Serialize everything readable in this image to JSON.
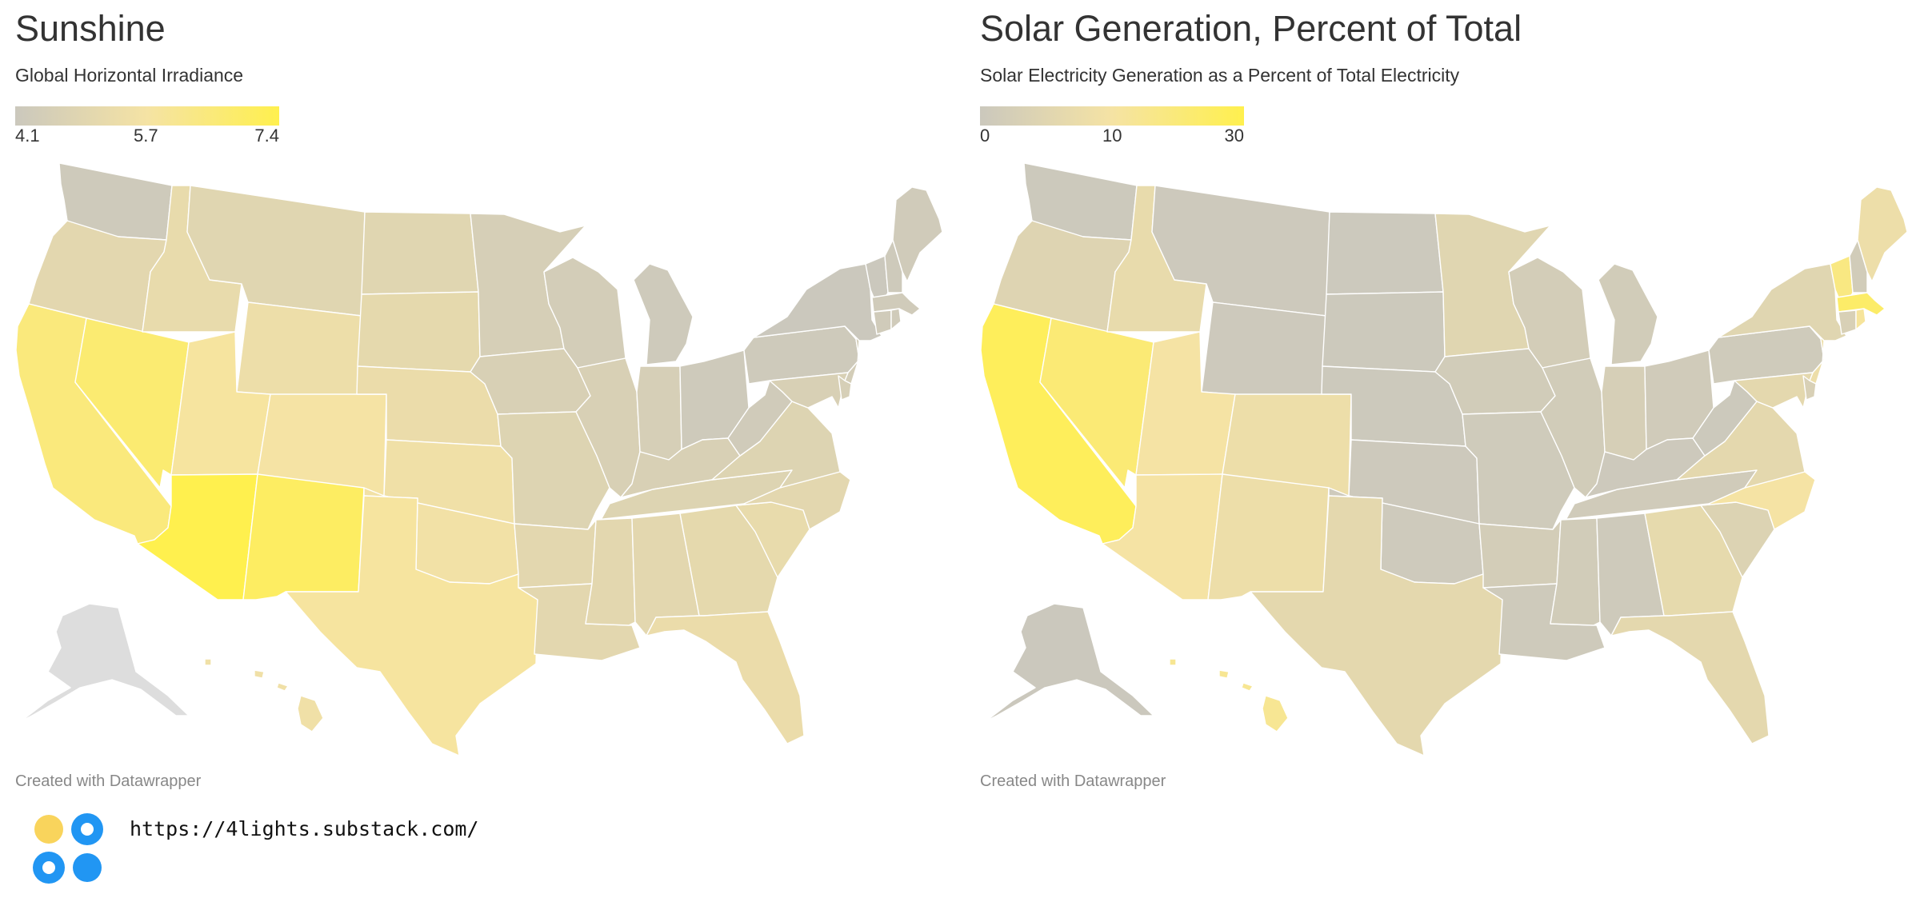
{
  "credit": "Created with Datawrapper",
  "link": "https://4lights.substack.com/",
  "colors": {
    "low": "#cbc8bd",
    "mid": "#f5e3a4",
    "high": "#fff04e",
    "no_data": "#dddddd",
    "logo_yellow": "#f9d45c",
    "logo_blue": "#2196f3"
  },
  "maps": [
    {
      "title": "Sunshine",
      "subtitle": "Global Horizontal Irradiance",
      "legend": {
        "min": "4.1",
        "mid": "5.7",
        "max": "7.4"
      },
      "scale": [
        4.1,
        5.7,
        7.4
      ],
      "credit": "Created with Datawrapper",
      "states": {
        "WA": 4.2,
        "OR": 5.0,
        "CA": 6.5,
        "NV": 6.7,
        "ID": 5.2,
        "MT": 4.9,
        "WY": 5.4,
        "UT": 5.8,
        "AZ": 7.4,
        "CO": 5.7,
        "NM": 7.0,
        "ND": 4.9,
        "SD": 5.1,
        "NE": 5.3,
        "KS": 5.5,
        "OK": 5.6,
        "TX": 5.8,
        "MN": 4.5,
        "IA": 4.6,
        "MO": 4.8,
        "AR": 5.0,
        "LA": 5.0,
        "WI": 4.4,
        "IL": 4.6,
        "MI": 4.2,
        "IN": 4.5,
        "OH": 4.2,
        "KY": 4.6,
        "TN": 4.8,
        "MS": 5.0,
        "AL": 5.0,
        "GA": 5.1,
        "FL": 5.3,
        "SC": 5.2,
        "NC": 5.0,
        "VA": 4.8,
        "WV": 4.3,
        "PA": 4.2,
        "NY": 4.1,
        "VT": 4.1,
        "NH": 4.2,
        "ME": 4.3,
        "MA": 4.3,
        "CT": 4.3,
        "RI": 4.3,
        "NJ": 4.4,
        "DE": 4.5,
        "MD": 4.6,
        "AK": null,
        "HI": 5.5
      }
    },
    {
      "title": "Solar Generation, Percent of Total",
      "subtitle": "Solar Electricity Generation as a Percent of Total Electricity",
      "legend": {
        "min": "0",
        "mid": "10",
        "max": "30"
      },
      "scale": [
        0,
        10,
        30
      ],
      "credit": "Created with Datawrapper",
      "states": {
        "WA": 0.3,
        "OR": 4.5,
        "CA": 27,
        "NV": 21,
        "ID": 7,
        "MT": 0.5,
        "WY": 0.4,
        "UT": 10,
        "AZ": 10,
        "CO": 8,
        "NM": 8,
        "ND": 0.2,
        "SD": 0.3,
        "NE": 0.3,
        "KS": 0.4,
        "OK": 0.6,
        "TX": 6,
        "MN": 5,
        "IA": 1.5,
        "MO": 1,
        "AR": 2,
        "LA": 0.8,
        "WI": 2,
        "IL": 1.5,
        "MI": 1.5,
        "IN": 2.5,
        "OH": 1.2,
        "KY": 0.4,
        "TN": 1.2,
        "MS": 1.5,
        "AL": 0.8,
        "GA": 6.5,
        "FL": 6,
        "SC": 4,
        "NC": 10,
        "VA": 6,
        "WV": 0.3,
        "PA": 1,
        "NY": 5,
        "VT": 18,
        "NH": 1.5,
        "ME": 8,
        "MA": 24,
        "CT": 3,
        "RI": 12,
        "NJ": 8,
        "DE": 3,
        "MD": 6,
        "AK": 0.1,
        "HI": 14
      }
    }
  ]
}
